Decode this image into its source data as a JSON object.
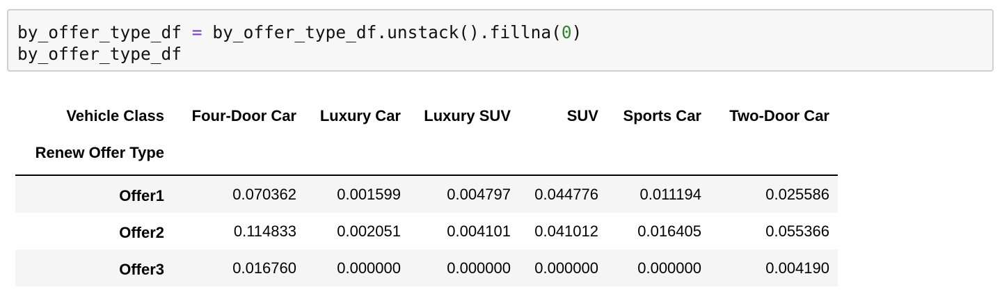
{
  "code_cell": {
    "line1": {
      "lhs": "by_offer_type_df",
      "op": "=",
      "rhs_start": "by_offer_type_df.unstack().fillna(",
      "arg": "0",
      "rhs_end": ")"
    },
    "line2": "by_offer_type_df"
  },
  "dataframe": {
    "columns_name": "Vehicle Class",
    "index_name": "Renew Offer Type",
    "columns": [
      "Four-Door Car",
      "Luxury Car",
      "Luxury SUV",
      "SUV",
      "Sports Car",
      "Two-Door Car"
    ],
    "rows": [
      {
        "label": "Offer1",
        "values": [
          "0.070362",
          "0.001599",
          "0.004797",
          "0.044776",
          "0.011194",
          "0.025586"
        ]
      },
      {
        "label": "Offer2",
        "values": [
          "0.114833",
          "0.002051",
          "0.004101",
          "0.041012",
          "0.016405",
          "0.055366"
        ]
      },
      {
        "label": "Offer3",
        "values": [
          "0.016760",
          "0.000000",
          "0.000000",
          "0.000000",
          "0.000000",
          "0.004190"
        ]
      }
    ]
  },
  "colors": {
    "input_bg": "#f7f7f7",
    "input_border": "#cfcfcf",
    "stripe": "#f5f5f5",
    "number_literal": "#2a8a2a",
    "operator": "#7a3fbf"
  }
}
